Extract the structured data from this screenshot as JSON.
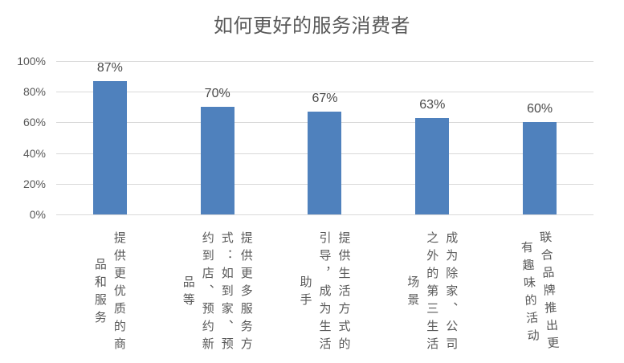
{
  "chart_data": {
    "type": "bar",
    "title": "如何更好的服务消费者",
    "categories": [
      "提供更优质的商品和服务",
      "提供更多服务方式：如到家、预约到店、预约新品等",
      "提供生活方式的引导，成为生活助手",
      "成为除家、公司之外的第三生活场景",
      "联合品牌推出更有趣味的活动"
    ],
    "categories_wrapped": [
      "提供更优质的商\n品和服务",
      "提供更多服务方\n式：如到家、预\n约到店、预约新\n品等",
      "提供生活方式的\n引导，成为生活\n助手",
      "成为除家、公司\n之外的第三生活\n场景",
      "联合品牌推出更\n有趣味的活动"
    ],
    "values": [
      87,
      70,
      67,
      63,
      60
    ],
    "value_labels": [
      "87%",
      "70%",
      "67%",
      "63%",
      "60%"
    ],
    "y_ticks": [
      "100%",
      "80%",
      "60%",
      "40%",
      "20%",
      "0%"
    ],
    "ylim": [
      0,
      100
    ],
    "y_step": 20,
    "grid": true,
    "legend": false,
    "colors": {
      "bar": "#4F81BD",
      "gridline": "#D9D9D9",
      "title_text": "#595959",
      "axis_text": "#595959",
      "data_label_text": "#4a4a4a"
    }
  }
}
